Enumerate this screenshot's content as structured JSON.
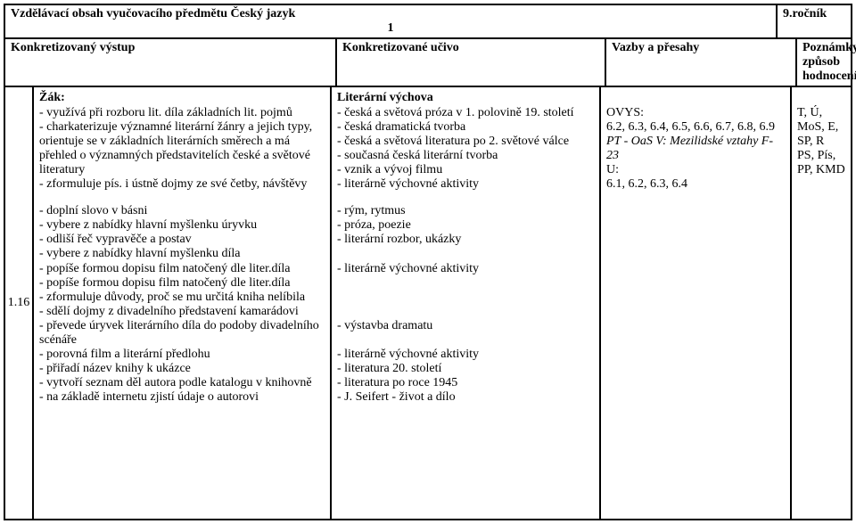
{
  "header": {
    "title": "Vzdělávací obsah vyučovacího předmětu Český jazyk",
    "grade": "9.ročník",
    "page_num": "1"
  },
  "headings": {
    "col1": "Konkretizovaný výstup",
    "col2": "Konkretizované učivo",
    "col3": "Vazby a přesahy",
    "col4_line1": "Poznámky",
    "col4_line2": "způsob hodnocení"
  },
  "sidebar": "1.16",
  "col1": {
    "heading": "Žák:",
    "block1": [
      "- využívá při rozboru lit. díla základních lit. pojmů",
      "- charkaterizuje významné literární žánry a jejich typy, orientuje se v základních literárních směrech a má přehled o významných představitelích české a světové literatury",
      "- zformuluje pís. i ústně dojmy ze své četby, návštěvy"
    ],
    "block2": [
      "- doplní slovo v básni",
      "- vybere z nabídky hlavní myšlenku úryvku",
      "- odliší řeč vypravěče a postav",
      "- vybere z nabídky hlavní myšlenku díla",
      "- popíše formou dopisu film natočený dle liter.díla",
      "- popíše formou dopisu film natočený dle liter.díla",
      "- zformuluje důvody, proč se mu určitá kniha nelíbila",
      "- sdělí dojmy z divadelního představení kamarádovi",
      "- převede úryvek literárního díla do podoby divadelního scénáře",
      "- porovná film a literární předlohu",
      "- přiřadí název knihy k ukázce",
      "- vytvoří seznam děl autora podle katalogu v knihovně",
      "- na základě internetu zjistí údaje o autorovi"
    ]
  },
  "col2": {
    "heading": "Literární výchova",
    "block1": [
      "- česká a světová próza v 1. polovině 19. století",
      "- česká dramatická tvorba",
      "- česká a světová literatura po 2. světové válce",
      "- současná česká literární tvorba",
      "- vznik a vývoj filmu",
      "- literárně výchovné aktivity"
    ],
    "block2": [
      "- rým, rytmus",
      "- próza, poezie",
      "- literární rozbor, ukázky",
      "",
      "- literárně výchovné aktivity",
      "",
      "",
      "",
      "- výstavba dramatu",
      "",
      "- literárně výchovné aktivity",
      "- literatura 20. století",
      "- literatura po roce 1945",
      "- J. Seifert - život a dílo"
    ]
  },
  "col3": {
    "block1": [
      "OVYS:",
      "6.2, 6.3, 6.4, 6.5, 6.6, 6.7, 6.8, 6.9"
    ],
    "pt_italic": "PT - OaS V: Mezilidské vztahy F-23",
    "block2": [
      "U:",
      "6.1, 6.2, 6.3, 6.4"
    ]
  },
  "col4": {
    "block1": [
      "T, Ú, MoS, E, SP, R",
      "PS, Pís, PP, KMD"
    ]
  }
}
